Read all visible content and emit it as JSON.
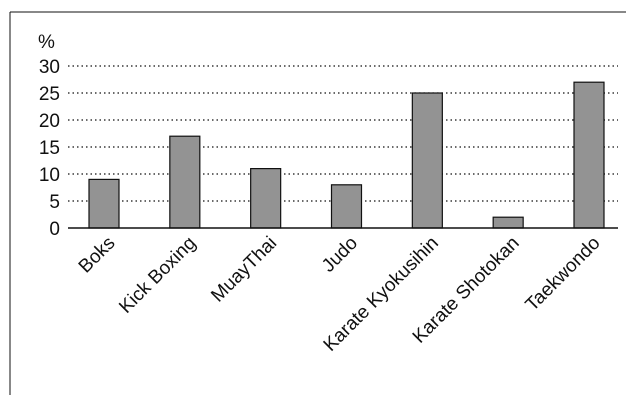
{
  "chart_data": {
    "type": "bar",
    "unit_label": "%",
    "categories": [
      "Boks",
      "Kick Boxing",
      "MuayThai",
      "Judo",
      "Karate Kyokusihin",
      "Karate Shotokan",
      "Taekwondo"
    ],
    "values": [
      9,
      17,
      11,
      8,
      25,
      2,
      27
    ],
    "yticks": [
      "0",
      "5",
      "10",
      "15",
      "20",
      "25",
      "30"
    ],
    "ylim": [
      0,
      30
    ],
    "grid": "horizontal-dotted",
    "legend": "none",
    "bar_color": "#939393",
    "bar_edge_color": "#111111"
  }
}
